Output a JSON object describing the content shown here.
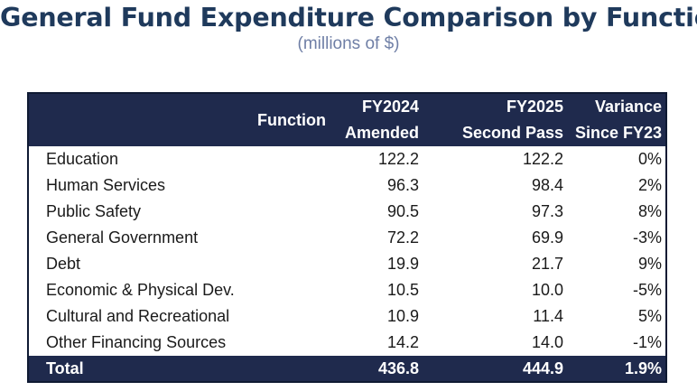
{
  "title": "General Fund Expenditure Comparison by Function",
  "subtitle": "(millions of $)",
  "table": {
    "headers": {
      "function": "Function",
      "fy2024_line1": "FY2024",
      "fy2024_line2": "Amended",
      "fy2025_line1": "FY2025",
      "fy2025_line2": "Second Pass",
      "variance_line1": "Variance",
      "variance_line2": "Since FY23"
    },
    "rows": [
      {
        "function": "Education",
        "fy2024": "122.2",
        "fy2025": "122.2",
        "variance": "0%"
      },
      {
        "function": "Human Services",
        "fy2024": "96.3",
        "fy2025": "98.4",
        "variance": "2%"
      },
      {
        "function": "Public Safety",
        "fy2024": "90.5",
        "fy2025": "97.3",
        "variance": "8%"
      },
      {
        "function": "General Government",
        "fy2024": "72.2",
        "fy2025": "69.9",
        "variance": "-3%"
      },
      {
        "function": "Debt",
        "fy2024": "19.9",
        "fy2025": "21.7",
        "variance": "9%"
      },
      {
        "function": "Economic & Physical Dev.",
        "fy2024": "10.5",
        "fy2025": "10.0",
        "variance": "-5%"
      },
      {
        "function": "Cultural and Recreational",
        "fy2024": "10.9",
        "fy2025": "11.4",
        "variance": "5%"
      },
      {
        "function": "Other Financing Sources",
        "fy2024": "14.2",
        "fy2025": "14.0",
        "variance": "-1%"
      }
    ],
    "total": {
      "function": "Total",
      "fy2024": "436.8",
      "fy2025": "444.9",
      "variance": "1.9%"
    }
  },
  "colors": {
    "title": "#1f3a5c",
    "subtitle": "#6f7fa6",
    "header_bg": "#1f2a4d",
    "header_text": "#ffffff"
  }
}
